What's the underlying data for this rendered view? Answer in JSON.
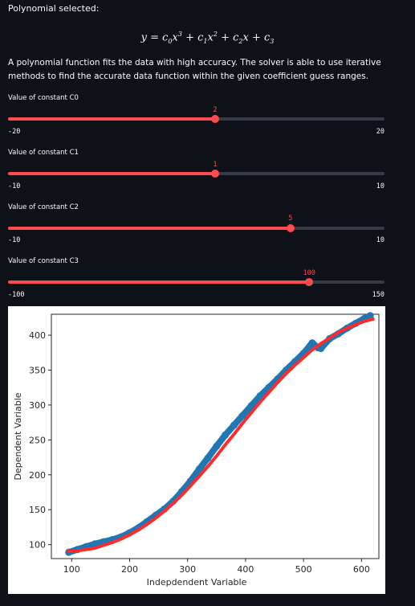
{
  "header": {
    "selected_label": "Polynomial selected:",
    "description": "A polynomial function fits the data with high accuracy. The solver is able to use iterative methods to find the accurate data function within the given coefficient guess ranges."
  },
  "formula": {
    "y": "y",
    "eq": " = ",
    "c0": "c",
    "s0": "0",
    "x": "x",
    "p3": "3",
    "p2": "2",
    "plus": " + ",
    "s1": "1",
    "s2": "2",
    "s3": "3"
  },
  "sliders": [
    {
      "label": "Value of constant C0",
      "min": "-20",
      "max": "20",
      "value": "2",
      "fraction": 0.55
    },
    {
      "label": "Value of constant C1",
      "min": "-10",
      "max": "10",
      "value": "1",
      "fraction": 0.55
    },
    {
      "label": "Value of constant C2",
      "min": "-10",
      "max": "10",
      "value": "5",
      "fraction": 0.75
    },
    {
      "label": "Value of constant C3",
      "min": "-100",
      "max": "150",
      "value": "100",
      "fraction": 0.8
    }
  ],
  "chart_data": {
    "type": "scatter",
    "xlabel": "Indepdendent Variable",
    "ylabel": "Dependent Variable",
    "xlim": [
      65,
      630
    ],
    "ylim": [
      80,
      430
    ],
    "xticks": [
      "100",
      "200",
      "300",
      "400",
      "500",
      "600"
    ],
    "yticks": [
      "100",
      "150",
      "200",
      "250",
      "300",
      "350",
      "400"
    ],
    "colors": {
      "data": "#1f77b4",
      "fit": "#ff2a2a"
    },
    "series": [
      {
        "kind": "data",
        "x": [
          95,
          110,
          125,
          140,
          155,
          170,
          185,
          200,
          215,
          230,
          245,
          260,
          275,
          290,
          305,
          320,
          335,
          350,
          365,
          380,
          395,
          410,
          425,
          440,
          455,
          470,
          485,
          500,
          515,
          525,
          530,
          545,
          560,
          575,
          590,
          605,
          615
        ],
        "y": [
          89,
          93,
          97,
          101,
          104,
          107,
          111,
          117,
          124,
          133,
          142,
          151,
          162,
          176,
          191,
          208,
          224,
          241,
          257,
          271,
          285,
          299,
          313,
          325,
          337,
          350,
          362,
          374,
          389,
          382,
          381,
          395,
          402,
          410,
          417,
          424,
          428
        ]
      },
      {
        "kind": "fit",
        "x": [
          95,
          110,
          125,
          140,
          155,
          170,
          185,
          200,
          215,
          230,
          245,
          260,
          275,
          290,
          305,
          320,
          335,
          350,
          365,
          380,
          395,
          410,
          425,
          440,
          455,
          470,
          485,
          500,
          515,
          530,
          545,
          560,
          575,
          590,
          605,
          620
        ],
        "y": [
          91,
          91,
          93,
          95,
          99,
          103,
          108,
          114,
          121,
          129,
          138,
          148,
          159,
          171,
          184,
          198,
          212,
          227,
          243,
          258,
          274,
          289,
          304,
          318,
          332,
          345,
          357,
          368,
          379,
          388,
          396,
          404,
          410,
          415,
          420,
          423
        ]
      }
    ]
  }
}
